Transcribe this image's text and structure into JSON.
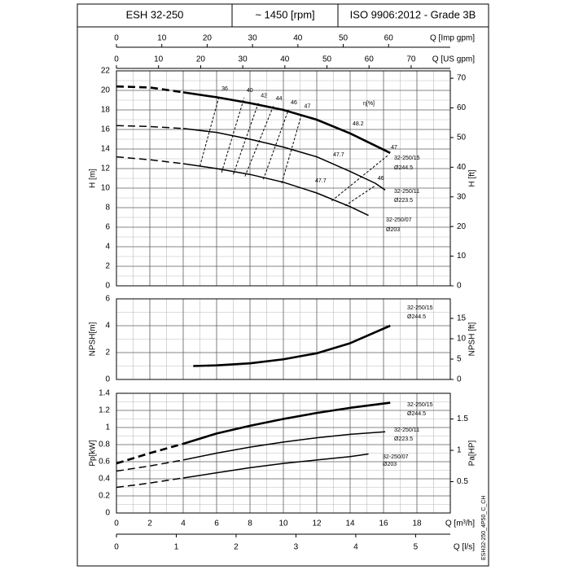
{
  "header": {
    "cells": [
      "ESH 32-250",
      "~ 1450 [rpm]",
      "ISO 9906:2012 - Grade 3B"
    ]
  },
  "footer_code": "ESH32-250_4P50_C_CH",
  "chart_data": [
    {
      "type": "line",
      "ylabel": "H [m]",
      "y2label": "H [ft]",
      "xlim": [
        0,
        20
      ],
      "ylim": [
        0,
        22
      ],
      "yticks": [
        0,
        2,
        4,
        6,
        8,
        10,
        12,
        14,
        16,
        18,
        20,
        22
      ],
      "y2lim": [
        0,
        72.5
      ],
      "y2ticks": [
        0,
        10,
        20,
        30,
        40,
        50,
        60,
        70
      ],
      "grid": true,
      "top_axes": [
        {
          "label": "Q [Imp gpm]",
          "xlim": [
            0,
            73.6
          ],
          "xticks": [
            0,
            10,
            20,
            30,
            40,
            50,
            60
          ]
        },
        {
          "label": "Q [US gpm]",
          "xlim": [
            0,
            79.3
          ],
          "xticks": [
            0,
            10,
            20,
            30,
            40,
            50,
            60,
            70
          ]
        }
      ],
      "series": [
        {
          "name": "32-250/15",
          "diameter": "Ø244.5",
          "color": "#000000",
          "line_width": 2.6,
          "dashed_until_x": 4,
          "x": [
            0,
            2,
            4,
            6,
            8,
            10,
            12,
            14,
            16.4
          ],
          "values": [
            20.4,
            20.3,
            19.8,
            19.3,
            18.7,
            18.0,
            17.0,
            15.6,
            13.6
          ]
        },
        {
          "name": "32-250/11",
          "diameter": "Ø223.5",
          "color": "#000000",
          "line_width": 1.5,
          "dashed_until_x": 4,
          "x": [
            0,
            2,
            4,
            6,
            8,
            10,
            12,
            14,
            15.5,
            16.1
          ],
          "values": [
            16.4,
            16.3,
            16.1,
            15.7,
            15.0,
            14.2,
            13.2,
            11.7,
            10.5,
            9.8
          ]
        },
        {
          "name": "32-250/07",
          "diameter": "Ø203",
          "color": "#000000",
          "line_width": 1.5,
          "dashed_until_x": 4,
          "x": [
            0,
            2,
            4,
            6,
            8,
            10,
            12,
            14,
            15.1
          ],
          "values": [
            13.2,
            12.9,
            12.5,
            12.0,
            11.4,
            10.6,
            9.5,
            8.1,
            7.2
          ]
        }
      ],
      "efficiency_label": "η[%]",
      "efficiency_lines": [
        {
          "label": 36,
          "x": [
            5.0,
            6.15
          ],
          "values": [
            12.25,
            19.4
          ]
        },
        {
          "label": 40,
          "x": [
            6.3,
            7.65
          ],
          "values": [
            11.6,
            19.25
          ]
        },
        {
          "label": 42,
          "x": [
            7.0,
            8.5
          ],
          "values": [
            11.4,
            18.7
          ]
        },
        {
          "label": 44,
          "x": [
            7.7,
            9.4
          ],
          "values": [
            11.2,
            18.4
          ]
        },
        {
          "label": 46,
          "x": [
            8.8,
            10.3
          ],
          "values": [
            10.9,
            18.0
          ]
        },
        {
          "label": 47,
          "x": [
            9.9,
            11.1
          ],
          "values": [
            10.5,
            17.6
          ]
        },
        {
          "label": 47,
          "x": [
            12.9,
            16.3
          ],
          "values": [
            8.7,
            13.4
          ]
        },
        {
          "label": 46,
          "x": [
            13.7,
            15.5
          ],
          "values": [
            8.2,
            10.25
          ]
        }
      ],
      "bep_labels": [
        48.2,
        47.7,
        47.7
      ]
    },
    {
      "type": "line",
      "ylabel": "NPSH[m]",
      "y2label": "NPSH [ft]",
      "xlim": [
        0,
        20
      ],
      "ylim": [
        0,
        6
      ],
      "yticks": [
        0,
        2,
        4,
        6
      ],
      "y2lim": [
        0,
        19.8
      ],
      "y2ticks": [
        0,
        5,
        10,
        15
      ],
      "grid": true,
      "series": [
        {
          "name": "32-250/15",
          "diameter": "Ø244.5",
          "color": "#000000",
          "line_width": 2.6,
          "x": [
            4.6,
            6,
            8,
            10,
            12,
            14,
            16.4
          ],
          "values": [
            1.0,
            1.05,
            1.2,
            1.5,
            1.95,
            2.7,
            4.0
          ]
        }
      ]
    },
    {
      "type": "line",
      "ylabel": "Pp[kW]",
      "y2label": "Pa[HP]",
      "xlim": [
        0,
        20
      ],
      "xticks": [
        0,
        2,
        4,
        6,
        8,
        10,
        12,
        14,
        16,
        18
      ],
      "xlabel": "Q [m³/h]",
      "ylim": [
        0,
        1.4
      ],
      "yticks": [
        0.0,
        0.2,
        0.4,
        0.6,
        0.8,
        1.0,
        1.2,
        1.4
      ],
      "y2lim": [
        0,
        1.91
      ],
      "y2ticks": [
        0.5,
        1.0,
        1.5
      ],
      "grid": true,
      "bottom_axes": [
        {
          "label": "Q [l/s]",
          "xlim": [
            0,
            5.58
          ],
          "xticks": [
            0,
            1,
            2,
            3,
            4,
            5
          ]
        }
      ],
      "series": [
        {
          "name": "32-250/15",
          "diameter": "Ø244.5",
          "color": "#000000",
          "line_width": 2.6,
          "dashed_until_x": 4,
          "x": [
            0,
            2,
            4,
            6,
            8,
            10,
            12,
            14,
            16.4
          ],
          "values": [
            0.58,
            0.7,
            0.81,
            0.93,
            1.02,
            1.1,
            1.17,
            1.23,
            1.29
          ]
        },
        {
          "name": "32-250/11",
          "diameter": "Ø223.5",
          "color": "#000000",
          "line_width": 1.5,
          "dashed_until_x": 4,
          "x": [
            0,
            2,
            4,
            6,
            8,
            10,
            12,
            14,
            16.1
          ],
          "values": [
            0.49,
            0.55,
            0.62,
            0.7,
            0.77,
            0.83,
            0.88,
            0.92,
            0.95
          ]
        },
        {
          "name": "32-250/07",
          "diameter": "Ø203",
          "color": "#000000",
          "line_width": 1.5,
          "dashed_until_x": 4,
          "x": [
            0,
            2,
            4,
            6,
            8,
            10,
            12,
            14,
            15.1
          ],
          "values": [
            0.3,
            0.35,
            0.41,
            0.47,
            0.53,
            0.58,
            0.62,
            0.66,
            0.69
          ]
        }
      ]
    }
  ]
}
